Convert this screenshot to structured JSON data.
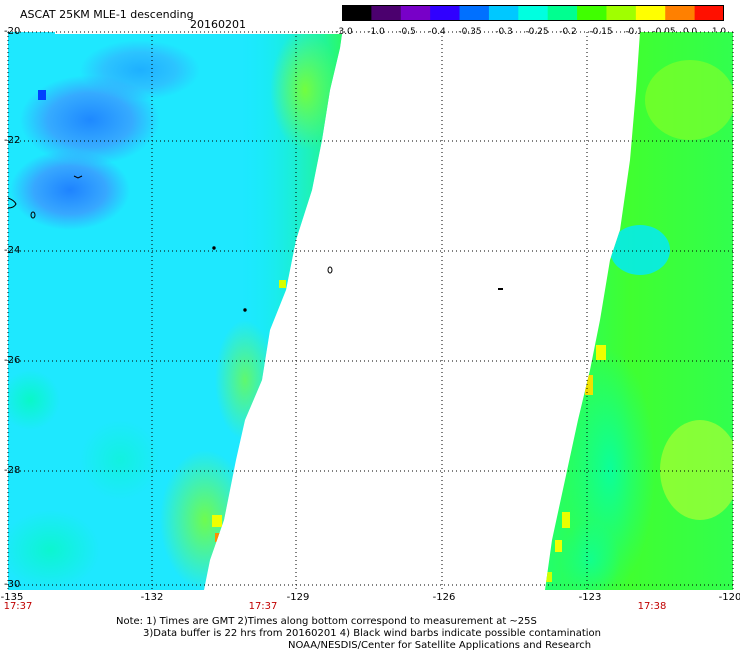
{
  "header": {
    "title": "ASCAT 25KM MLE-1 descending",
    "date": "20160201"
  },
  "colorbar": {
    "ticks": [
      "-3.0",
      "-1.0",
      "-0.5",
      "-0.4",
      "-0.35",
      "-0.3",
      "-0.25",
      "-0.2",
      "-0.15",
      "-0.1",
      "-0.05",
      "0.0",
      "1.0"
    ],
    "colors": [
      "#000000",
      "#4b006e",
      "#7800c8",
      "#3000ff",
      "#0070ff",
      "#00c8ff",
      "#00ffe0",
      "#00ff90",
      "#40ff00",
      "#a0ff00",
      "#ffff00",
      "#ff8000",
      "#ff1000"
    ]
  },
  "axes": {
    "y_labels": [
      "-20",
      "-22",
      "-24",
      "-26",
      "-28",
      "-30"
    ],
    "x_labels": [
      "-135",
      "-132",
      "-129",
      "-126",
      "-123",
      "-120"
    ]
  },
  "times": [
    "17:37",
    "17:37",
    "17:38"
  ],
  "note": {
    "line1": "Note: 1) Times are GMT 2)Times along bottom correspond to measurement at ~25S",
    "line2": "3)Data buffer is 22 hrs from 20160201 4) Black wind barbs indicate possible contamination",
    "line3": "NOAA/NESDIS/Center for Satellite Applications and Research"
  }
}
